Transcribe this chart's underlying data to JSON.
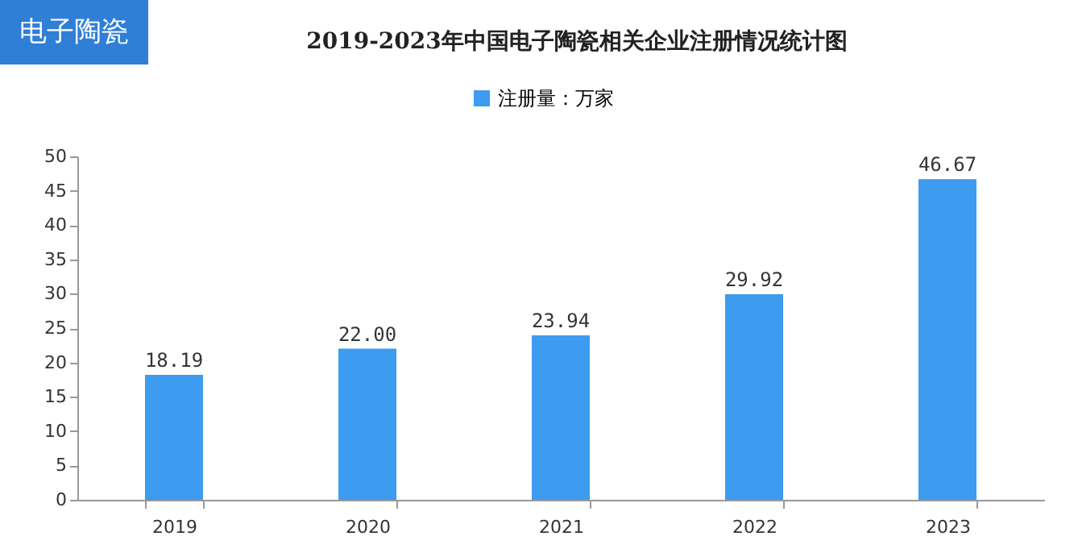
{
  "chart_data": {
    "type": "bar",
    "title": "2019-2023年中国电子陶瓷相关企业注册情况统计图",
    "annotations": [
      "电子陶瓷"
    ],
    "categories": [
      "2019",
      "2020",
      "2021",
      "2022",
      "2023"
    ],
    "series": [
      {
        "name": "注册量：万家",
        "color": "#3d9bf0",
        "values": [
          18.19,
          22.0,
          23.94,
          29.92,
          46.67
        ],
        "value_labels": [
          "18.19",
          "22.00",
          "23.94",
          "29.92",
          "46.67"
        ]
      }
    ],
    "ylim": [
      0,
      50
    ],
    "yticks": [
      0,
      5,
      10,
      15,
      20,
      25,
      30,
      35,
      40,
      45,
      50
    ],
    "grid": false,
    "legend": "top"
  }
}
